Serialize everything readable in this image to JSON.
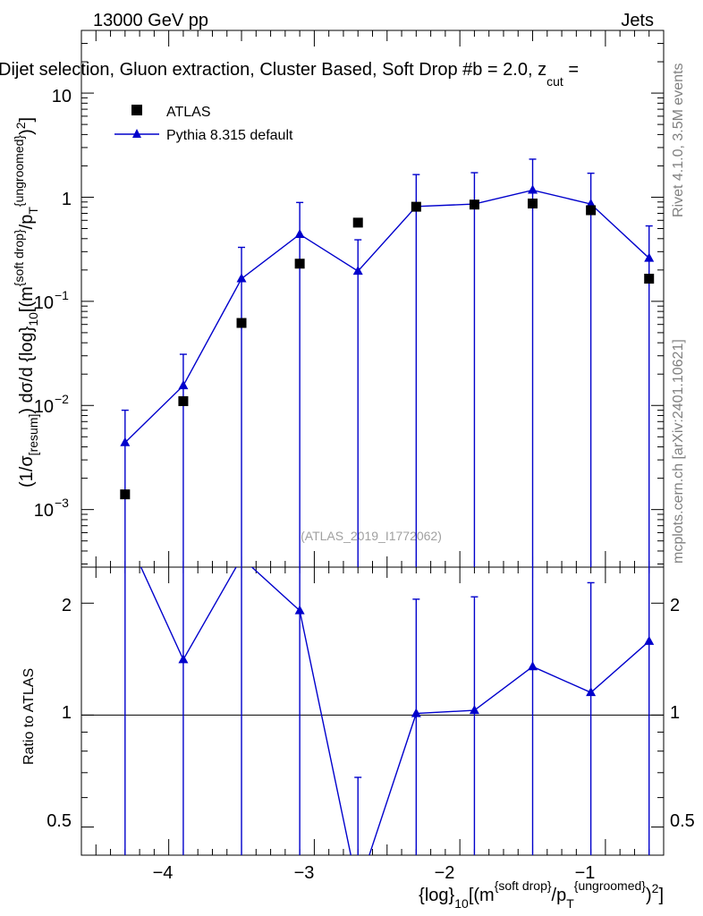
{
  "header": {
    "energy_label": "13000 GeV pp",
    "category_label": "Jets",
    "title": "Dijet selection, Gluon extraction, Cluster Based, Soft Drop #b = 2.0, z",
    "title_subscript": "cut",
    "title_tail": " ="
  },
  "side_labels": {
    "rivet": "Rivet 4.1.0,  3.5M events",
    "mcplots": "mcplots.cern.ch [arXiv:2401.10621]"
  },
  "watermark": "(ATLAS_2019_I1772062)",
  "legend": {
    "data_label": "ATLAS",
    "mc_label": "Pythia 8.315 default"
  },
  "axes": {
    "ylabel_main": "(1/σresum) dσ/d{log}10[(m{soft drop}/pT{ungroomed})2]",
    "ylabel_ratio": "Ratio to ATLAS",
    "xlabel": "{log}10[(m{soft drop}/pT{ungroomed})2]",
    "main_tick_labels": [
      "10",
      "1",
      "10",
      "10",
      "10"
    ],
    "main_tick_exponents": [
      "",
      "",
      "−1",
      "−2",
      "−3"
    ],
    "ratio_tick_labels": [
      "2",
      "1",
      "0.5"
    ],
    "x_tick_labels": [
      "−4",
      "−3",
      "−2",
      "−1"
    ]
  },
  "colors": {
    "data": "#000000",
    "mc": "#0000cc"
  },
  "chart_data": [
    {
      "type": "scatter",
      "panel": "main",
      "yscale": "log",
      "xlim": [
        -4.6,
        -0.6
      ],
      "ylim": [
        0.00028,
        40
      ],
      "x": [
        -4.3,
        -3.9,
        -3.5,
        -3.1,
        -2.7,
        -2.3,
        -1.9,
        -1.5,
        -1.1,
        -0.7
      ],
      "series": [
        {
          "name": "ATLAS",
          "marker": "square",
          "values": [
            0.0014,
            0.011,
            0.062,
            0.23,
            0.57,
            0.81,
            0.85,
            0.87,
            0.75,
            0.165
          ]
        },
        {
          "name": "Pythia 8.315 default",
          "marker": "triangle",
          "values": [
            0.0044,
            0.0155,
            0.165,
            0.44,
            0.195,
            0.815,
            0.86,
            1.17,
            0.86,
            0.26
          ],
          "err_up": [
            0.009,
            0.031,
            0.33,
            0.89,
            0.39,
            1.65,
            1.72,
            2.32,
            1.7,
            0.53
          ],
          "err_down": [
            0.00028,
            0.00028,
            0.00028,
            0.00028,
            0.00028,
            0.00028,
            0.00028,
            0.00028,
            0.00028,
            0.00028
          ]
        }
      ]
    },
    {
      "type": "line",
      "panel": "ratio",
      "yscale": "log",
      "xlim": [
        -4.6,
        -0.6
      ],
      "ylim": [
        0.42,
        2.5
      ],
      "reference": 1,
      "x": [
        -4.3,
        -3.9,
        -3.5,
        -3.1,
        -2.7,
        -2.3,
        -1.9,
        -1.5,
        -1.1,
        -0.7
      ],
      "series": [
        {
          "name": "Pythia 8.315 default / ATLAS",
          "values": [
            3.1,
            1.41,
            2.65,
            1.91,
            0.34,
            1.01,
            1.03,
            1.35,
            1.15,
            1.58
          ],
          "err_up": [
            5.0,
            2.5,
            5.0,
            3.0,
            0.68,
            2.05,
            2.08,
            2.67,
            2.27,
            3.2
          ],
          "err_down": [
            0.3,
            0.3,
            0.3,
            0.3,
            0.3,
            0.3,
            0.3,
            0.3,
            0.3,
            0.3
          ],
          "marker_shown": [
            false,
            true,
            false,
            true,
            false,
            true,
            true,
            true,
            true,
            true
          ]
        }
      ]
    }
  ]
}
